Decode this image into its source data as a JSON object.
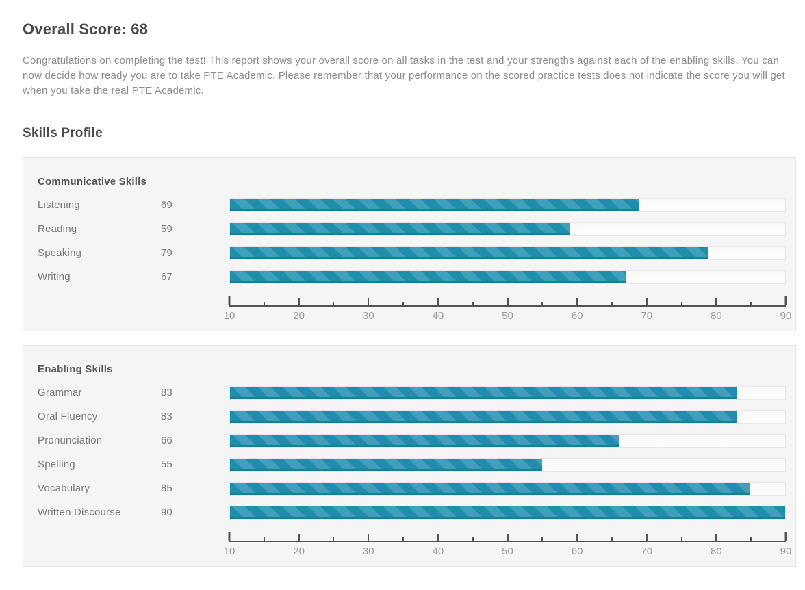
{
  "page": {
    "overall_title": "Overall Score: 68",
    "description": "Congratulations on completing the test! This report shows your overall score on all tasks in the test and your strengths against each of the enabling skills. You can now decide how ready you are to take PTE Academic. Please remember that your performance on the scored practice tests does not indicate the score you will get when you take the real PTE Academic.",
    "skills_profile_title": "Skills Profile"
  },
  "colors": {
    "bar_stripe_dark": "#1f8dac",
    "bar_stripe_light": "#3fa0bc",
    "bar_bottom_edge": "#187c9b",
    "panel_bg": "#f5f5f5",
    "panel_border": "#e3e3e3",
    "track_bg": "#f9f9f9",
    "track_border": "#e7e7e7",
    "heading_text": "#4a4a4d",
    "paragraph_text": "#8c8c8e",
    "label_text": "#77777a",
    "axis_line": "#535356",
    "axis_label_text": "#98989a"
  },
  "chart_data": [
    {
      "type": "bar",
      "orientation": "horizontal",
      "title": "Communicative Skills",
      "categories": [
        "Listening",
        "Reading",
        "Speaking",
        "Writing"
      ],
      "values": [
        69,
        59,
        79,
        67
      ],
      "xlim": [
        10,
        90
      ],
      "xticks": [
        10,
        20,
        30,
        40,
        50,
        60,
        70,
        80,
        90
      ],
      "minor_tick_step": 5,
      "grid": false,
      "legend": false
    },
    {
      "type": "bar",
      "orientation": "horizontal",
      "title": "Enabling Skills",
      "categories": [
        "Grammar",
        "Oral Fluency",
        "Pronunciation",
        "Spelling",
        "Vocabulary",
        "Written Discourse"
      ],
      "values": [
        83,
        83,
        66,
        55,
        85,
        90
      ],
      "xlim": [
        10,
        90
      ],
      "xticks": [
        10,
        20,
        30,
        40,
        50,
        60,
        70,
        80,
        90
      ],
      "minor_tick_step": 5,
      "grid": false,
      "legend": false
    }
  ]
}
